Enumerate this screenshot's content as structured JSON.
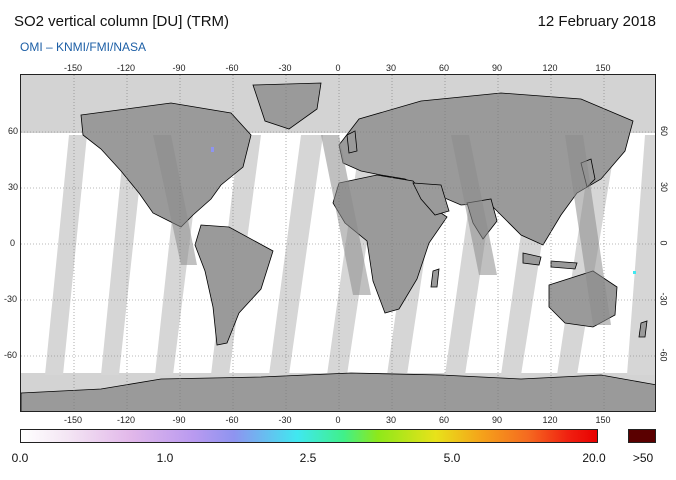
{
  "title": "SO2 vertical column [DU] (TRM)",
  "date": "12 February 2018",
  "source": "OMI  –  KNMI/FMI/NASA",
  "lon_ticks": [
    "-150",
    "-120",
    "-90",
    "-60",
    "-30",
    "0",
    "30",
    "60",
    "90",
    "120",
    "150"
  ],
  "lat_ticks": [
    "60",
    "30",
    "0",
    "-30",
    "-60"
  ],
  "colorbar": {
    "labels": [
      "0.0",
      "1.0",
      "2.5",
      "5.0",
      "20.0"
    ],
    "over_label": ">50",
    "colors": [
      "#ffffff",
      "#f4e6f4",
      "#e2b8ea",
      "#b99af0",
      "#8e94f0",
      "#40e8f0",
      "#40f08a",
      "#8ee81a",
      "#e8e21a",
      "#f5a21a",
      "#f56a20",
      "#f02010",
      "#e80000"
    ],
    "over_color": "#5a0000"
  },
  "map": {
    "land_color": "#9e9e9e",
    "ocean_swath_color": "#cfcfcf",
    "no_data_color": "#d3d3d3",
    "coast_color": "#000000"
  }
}
